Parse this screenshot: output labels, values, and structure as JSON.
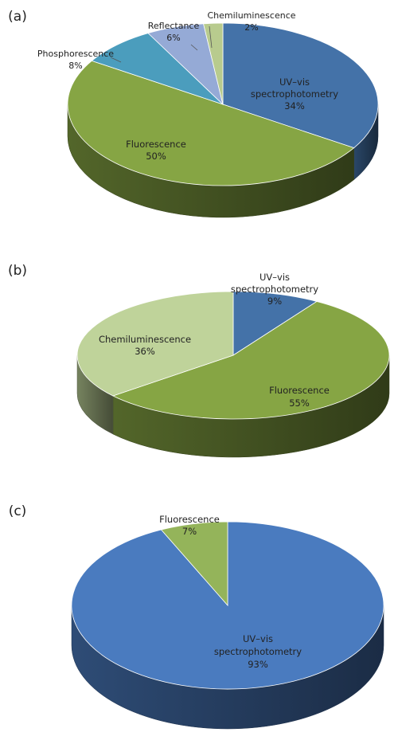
{
  "chart_data": [
    {
      "panel_label": "(a)",
      "type": "pie",
      "slices": [
        {
          "label": "UV–vis spectrophotometry",
          "value": 34,
          "value_label": "34%",
          "color": "#4472a8"
        },
        {
          "label": "Fluorescence",
          "value": 50,
          "value_label": "50%",
          "color": "#86a544"
        },
        {
          "label": "Phosphorescence",
          "value": 8,
          "value_label": "8%",
          "color": "#4b9dbd"
        },
        {
          "label": "Reflectance",
          "value": 6,
          "value_label": "6%",
          "color": "#95aad6"
        },
        {
          "label": "Chemiluminescence",
          "value": 2,
          "value_label": "2%",
          "color": "#b8cb8e"
        }
      ]
    },
    {
      "panel_label": "(b)",
      "type": "pie",
      "slices": [
        {
          "label": "UV–vis spectrophotometry",
          "value": 9,
          "value_label": "9%",
          "color": "#4472a8"
        },
        {
          "label": "Fluorescence",
          "value": 55,
          "value_label": "55%",
          "color": "#86a544"
        },
        {
          "label": "Chemiluminescence",
          "value": 36,
          "value_label": "36%",
          "color": "#bfd39a"
        }
      ]
    },
    {
      "panel_label": "(c)",
      "type": "pie",
      "slices": [
        {
          "label": "UV–vis spectrophotometry",
          "value": 93,
          "value_label": "93%",
          "color": "#4a7bbf"
        },
        {
          "label": "Fluorescence",
          "value": 7,
          "value_label": "7%",
          "color": "#94b45a"
        }
      ]
    }
  ]
}
